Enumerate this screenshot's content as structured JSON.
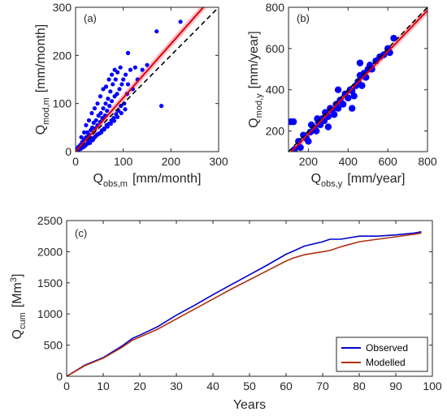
{
  "chart_data": [
    {
      "type": "scatter",
      "panel_label": "(a)",
      "xlabel_main": "Q",
      "xlabel_sub": "obs,m",
      "xlabel_unit": "[mm/month]",
      "ylabel_main": "Q",
      "ylabel_sub": "mod,m",
      "ylabel_unit": "[mm/month]",
      "xlim": [
        0,
        300
      ],
      "ylim": [
        0,
        300
      ],
      "xticks": [
        0,
        100,
        200,
        300
      ],
      "yticks": [
        0,
        100,
        200,
        300
      ],
      "grid": false,
      "colors": {
        "points": "#0000ff",
        "fit": "#e00000",
        "one_to_one": "#000000",
        "band": "#ffb0c0"
      },
      "one_to_one_line": true,
      "fit_line": {
        "slope": 1.12,
        "intercept": 0
      },
      "points": [
        [
          2,
          3
        ],
        [
          4,
          6
        ],
        [
          5,
          2
        ],
        [
          6,
          10
        ],
        [
          8,
          5
        ],
        [
          10,
          14
        ],
        [
          12,
          8
        ],
        [
          14,
          20
        ],
        [
          15,
          10
        ],
        [
          18,
          25
        ],
        [
          20,
          12
        ],
        [
          22,
          30
        ],
        [
          24,
          16
        ],
        [
          25,
          40
        ],
        [
          27,
          22
        ],
        [
          28,
          35
        ],
        [
          30,
          18
        ],
        [
          32,
          45
        ],
        [
          33,
          28
        ],
        [
          35,
          50
        ],
        [
          36,
          24
        ],
        [
          38,
          60
        ],
        [
          40,
          30
        ],
        [
          41,
          48
        ],
        [
          43,
          65
        ],
        [
          45,
          35
        ],
        [
          46,
          55
        ],
        [
          48,
          75
        ],
        [
          50,
          38
        ],
        [
          52,
          62
        ],
        [
          53,
          80
        ],
        [
          55,
          44
        ],
        [
          56,
          70
        ],
        [
          58,
          90
        ],
        [
          60,
          48
        ],
        [
          62,
          75
        ],
        [
          63,
          100
        ],
        [
          65,
          55
        ],
        [
          66,
          85
        ],
        [
          68,
          110
        ],
        [
          70,
          58
        ],
        [
          71,
          95
        ],
        [
          73,
          125
        ],
        [
          75,
          65
        ],
        [
          76,
          105
        ],
        [
          78,
          140
        ],
        [
          80,
          70
        ],
        [
          82,
          115
        ],
        [
          84,
          150
        ],
        [
          85,
          78
        ],
        [
          87,
          120
        ],
        [
          88,
          165
        ],
        [
          90,
          85
        ],
        [
          92,
          130
        ],
        [
          94,
          175
        ],
        [
          95,
          95
        ],
        [
          97,
          140
        ],
        [
          100,
          150
        ],
        [
          102,
          100
        ],
        [
          105,
          160
        ],
        [
          108,
          120
        ],
        [
          110,
          140
        ],
        [
          115,
          170
        ],
        [
          120,
          130
        ],
        [
          125,
          175
        ],
        [
          130,
          150
        ],
        [
          140,
          170
        ],
        [
          150,
          180
        ],
        [
          180,
          95
        ],
        [
          220,
          270
        ],
        [
          170,
          250
        ],
        [
          110,
          205
        ],
        [
          12,
          30
        ],
        [
          18,
          40
        ],
        [
          22,
          55
        ],
        [
          28,
          65
        ],
        [
          34,
          80
        ],
        [
          40,
          90
        ],
        [
          46,
          100
        ],
        [
          52,
          115
        ],
        [
          58,
          130
        ],
        [
          64,
          135
        ],
        [
          70,
          150
        ],
        [
          76,
          160
        ],
        [
          82,
          170
        ],
        [
          3,
          1
        ],
        [
          7,
          4
        ],
        [
          11,
          6
        ],
        [
          16,
          9
        ],
        [
          21,
          14
        ],
        [
          26,
          18
        ],
        [
          31,
          22
        ],
        [
          37,
          26
        ],
        [
          42,
          32
        ],
        [
          47,
          36
        ],
        [
          54,
          40
        ],
        [
          60,
          46
        ],
        [
          67,
          52
        ],
        [
          74,
          58
        ],
        [
          81,
          64
        ],
        [
          88,
          72
        ],
        [
          96,
          80
        ],
        [
          104,
          88
        ]
      ]
    },
    {
      "type": "scatter",
      "panel_label": "(b)",
      "xlabel_main": "Q",
      "xlabel_sub": "obs,y",
      "xlabel_unit": "[mm/year]",
      "ylabel_main": "Q",
      "ylabel_sub": "mod,y",
      "ylabel_unit": "[mm/year]",
      "xlim": [
        100,
        800
      ],
      "ylim": [
        100,
        800
      ],
      "xticks": [
        200,
        400,
        600,
        800
      ],
      "yticks": [
        200,
        400,
        600,
        800
      ],
      "grid": false,
      "colors": {
        "points": "#0000ff",
        "fit": "#e00000",
        "one_to_one": "#000000",
        "band": "#ffb0c0"
      },
      "one_to_one_line": true,
      "fit_line": {
        "slope": 1.0,
        "intercept": -15
      },
      "points": [
        [
          110,
          245
        ],
        [
          125,
          245
        ],
        [
          130,
          110
        ],
        [
          150,
          150
        ],
        [
          160,
          120
        ],
        [
          175,
          180
        ],
        [
          190,
          165
        ],
        [
          200,
          150
        ],
        [
          210,
          195
        ],
        [
          215,
          230
        ],
        [
          230,
          215
        ],
        [
          240,
          200
        ],
        [
          250,
          245
        ],
        [
          260,
          230
        ],
        [
          270,
          260
        ],
        [
          280,
          250
        ],
        [
          285,
          290
        ],
        [
          300,
          270
        ],
        [
          310,
          310
        ],
        [
          320,
          300
        ],
        [
          330,
          280
        ],
        [
          340,
          330
        ],
        [
          350,
          310
        ],
        [
          360,
          350
        ],
        [
          375,
          330
        ],
        [
          385,
          380
        ],
        [
          400,
          360
        ],
        [
          410,
          400
        ],
        [
          420,
          395
        ],
        [
          430,
          370
        ],
        [
          440,
          420
        ],
        [
          450,
          440
        ],
        [
          460,
          470
        ],
        [
          470,
          420
        ],
        [
          480,
          480
        ],
        [
          490,
          460
        ],
        [
          500,
          500
        ],
        [
          510,
          520
        ],
        [
          520,
          500
        ],
        [
          540,
          540
        ],
        [
          560,
          560
        ],
        [
          580,
          570
        ],
        [
          600,
          600
        ],
        [
          610,
          580
        ],
        [
          630,
          650
        ],
        [
          420,
          310
        ],
        [
          300,
          220
        ],
        [
          350,
          400
        ],
        [
          460,
          530
        ],
        [
          245,
          260
        ]
      ]
    },
    {
      "type": "line",
      "panel_label": "(c)",
      "xlabel": "Years",
      "ylabel_main": "Q",
      "ylabel_sub": "cum",
      "ylabel_unit_pre": "[Mm",
      "ylabel_unit_sup": "3",
      "ylabel_unit_post": "]",
      "xlim": [
        0,
        100
      ],
      "ylim": [
        0,
        2500
      ],
      "xticks": [
        0,
        10,
        20,
        30,
        40,
        50,
        60,
        70,
        80,
        90,
        100
      ],
      "yticks": [
        0,
        500,
        1000,
        1500,
        2000,
        2500
      ],
      "grid": false,
      "legend_position": "bottom-right",
      "series": [
        {
          "name": "Observed",
          "color": "#0000cc",
          "x": [
            0,
            5,
            10,
            15,
            18,
            20,
            25,
            30,
            35,
            40,
            45,
            50,
            55,
            60,
            62,
            65,
            70,
            72,
            75,
            80,
            85,
            90,
            95,
            97
          ],
          "y": [
            0,
            180,
            300,
            480,
            610,
            660,
            800,
            980,
            1140,
            1310,
            1470,
            1630,
            1790,
            1960,
            2010,
            2090,
            2160,
            2200,
            2200,
            2250,
            2250,
            2270,
            2300,
            2320
          ]
        },
        {
          "name": "Modelled",
          "color": "#b03010",
          "x": [
            0,
            5,
            10,
            15,
            18,
            20,
            25,
            30,
            35,
            40,
            45,
            50,
            55,
            60,
            62,
            65,
            70,
            72,
            75,
            80,
            85,
            90,
            95,
            97
          ],
          "y": [
            0,
            170,
            290,
            460,
            580,
            630,
            760,
            920,
            1080,
            1240,
            1400,
            1550,
            1700,
            1850,
            1900,
            1950,
            2000,
            2020,
            2080,
            2160,
            2200,
            2240,
            2280,
            2300
          ]
        }
      ]
    }
  ]
}
